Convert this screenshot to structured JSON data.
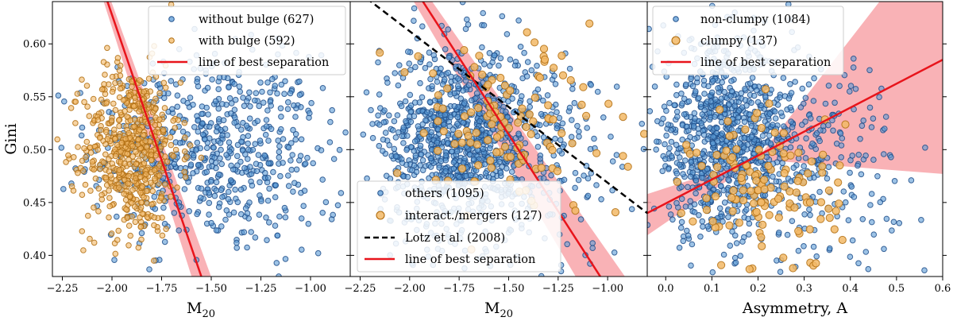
{
  "figure": {
    "type": "scatter",
    "ylabel": "Gini",
    "panels": 3
  },
  "chart_data": [
    {
      "type": "scatter",
      "xlabel": "M",
      "xlabel_sub": "20",
      "ylabel": "Gini",
      "xlim": [
        -2.3,
        -0.8
      ],
      "ylim": [
        0.38,
        0.64
      ],
      "xticks": [
        -2.25,
        -2.0,
        -1.75,
        -1.5,
        -1.25,
        -1.0
      ],
      "xtick_labels": [
        "−2.25",
        "−2.00",
        "−1.75",
        "−1.50",
        "−1.25",
        "−1.00"
      ],
      "yticks": [
        0.4,
        0.45,
        0.5,
        0.55,
        0.6
      ],
      "ytick_labels": [
        "0.40",
        "0.45",
        "0.50",
        "0.55",
        "0.60"
      ],
      "legend_position": "top-right",
      "series": [
        {
          "name": "without bulge (627)",
          "kind": "points",
          "color": "#5b9bd5",
          "edge": "#1f4e8a",
          "count": 627,
          "clusters": [
            {
              "cx": -1.55,
              "cy": 0.5,
              "sx": 0.28,
              "sy": 0.045,
              "n": 500
            },
            {
              "cx": -1.2,
              "cy": 0.49,
              "sx": 0.18,
              "sy": 0.05,
              "n": 127
            }
          ]
        },
        {
          "name": "with bulge (592)",
          "kind": "points",
          "color": "#f2b866",
          "edge": "#b06d10",
          "count": 592,
          "clusters": [
            {
              "cx": -1.9,
              "cy": 0.5,
              "sx": 0.12,
              "sy": 0.04,
              "n": 592
            }
          ]
        },
        {
          "name": "line of best separation",
          "kind": "line",
          "color": "#e8141b",
          "x": [
            -2.05,
            -1.55
          ],
          "y": [
            0.655,
            0.38
          ],
          "band_width_x": 0.035
        }
      ]
    },
    {
      "type": "scatter",
      "xlabel": "M",
      "xlabel_sub": "20",
      "xlim": [
        -2.3,
        -0.8
      ],
      "ylim": [
        0.38,
        0.64
      ],
      "xticks": [
        -2.25,
        -2.0,
        -1.75,
        -1.5,
        -1.25,
        -1.0
      ],
      "xtick_labels": [
        "−2.25",
        "−2.00",
        "−1.75",
        "−1.50",
        "−1.25",
        "−1.00"
      ],
      "yticks": [
        0.4,
        0.45,
        0.5,
        0.55,
        0.6
      ],
      "legend_position": "bottom-center",
      "series": [
        {
          "name": "others (1095)",
          "kind": "points",
          "color": "#5b9bd5",
          "edge": "#1f4e8a",
          "count": 1095,
          "clusters": [
            {
              "cx": -1.75,
              "cy": 0.51,
              "sx": 0.2,
              "sy": 0.045,
              "n": 900
            },
            {
              "cx": -1.35,
              "cy": 0.5,
              "sx": 0.25,
              "sy": 0.05,
              "n": 195
            }
          ]
        },
        {
          "name": "interact./mergers (127)",
          "kind": "points",
          "color": "#f2b866",
          "edge": "#b06d10",
          "count": 127,
          "clusters": [
            {
              "cx": -1.5,
              "cy": 0.52,
              "sx": 0.3,
              "sy": 0.045,
              "n": 127
            }
          ]
        },
        {
          "name": "Lotz et al. (2008)",
          "kind": "dashed-line",
          "color": "#000000",
          "x": [
            -2.3,
            -0.8
          ],
          "y": [
            0.655,
            0.44
          ]
        },
        {
          "name": "line of best separation",
          "kind": "line",
          "color": "#e8141b",
          "x": [
            -1.95,
            -1.02
          ],
          "y": [
            0.645,
            0.375
          ],
          "band_width_x": 0.09
        }
      ]
    },
    {
      "type": "scatter",
      "xlabel": "Asymmetry, A",
      "xlim": [
        -0.04,
        0.6
      ],
      "ylim": [
        0.38,
        0.64
      ],
      "xticks": [
        0.0,
        0.1,
        0.2,
        0.3,
        0.4,
        0.5,
        0.6
      ],
      "xtick_labels": [
        "0.0",
        "0.1",
        "0.2",
        "0.3",
        "0.4",
        "0.5",
        "0.6"
      ],
      "yticks": [
        0.4,
        0.45,
        0.5,
        0.55,
        0.6
      ],
      "legend_position": "top-left",
      "series": [
        {
          "name": "non-clumpy (1084)",
          "kind": "points",
          "color": "#5b9bd5",
          "edge": "#1f4e8a",
          "count": 1084,
          "clusters": [
            {
              "cx": 0.12,
              "cy": 0.51,
              "sx": 0.08,
              "sy": 0.045,
              "n": 800
            },
            {
              "cx": 0.3,
              "cy": 0.49,
              "sx": 0.1,
              "sy": 0.05,
              "n": 284
            }
          ]
        },
        {
          "name": "clumpy (137)",
          "kind": "points",
          "color": "#f2b866",
          "edge": "#b06d10",
          "count": 137,
          "clusters": [
            {
              "cx": 0.22,
              "cy": 0.46,
              "sx": 0.08,
              "sy": 0.04,
              "n": 137
            }
          ]
        },
        {
          "name": "line of best separation",
          "kind": "line",
          "color": "#e8141b",
          "x": [
            -0.04,
            0.6
          ],
          "y": [
            0.44,
            0.585
          ],
          "band_spread": 0.06
        }
      ]
    }
  ]
}
